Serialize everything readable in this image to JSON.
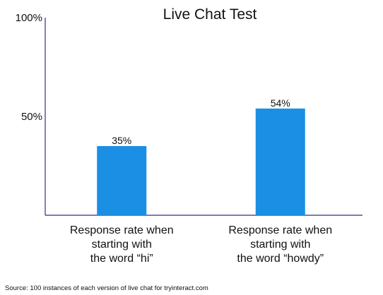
{
  "chart_data": {
    "type": "bar",
    "title": "Live Chat Test",
    "xlabel": "",
    "ylabel": "",
    "categories": [
      [
        "Response rate when",
        "starting with",
        "the word “hi”"
      ],
      [
        "Response rate when",
        "starting with",
        "the word “howdy”"
      ]
    ],
    "values": [
      35,
      54
    ],
    "data_labels": [
      "35%",
      "54%"
    ],
    "ylim": [
      0,
      100
    ],
    "yticks": [
      {
        "value": 50,
        "label": "50%"
      },
      {
        "value": 100,
        "label": "100%"
      }
    ],
    "grid": false,
    "legend": "none",
    "source": "Source: 100 instances of each version of live chat for tryinteract.com",
    "colors": {
      "bar": "#1a8fe3",
      "axis": "#2b2f8c",
      "text": "#111111"
    }
  }
}
